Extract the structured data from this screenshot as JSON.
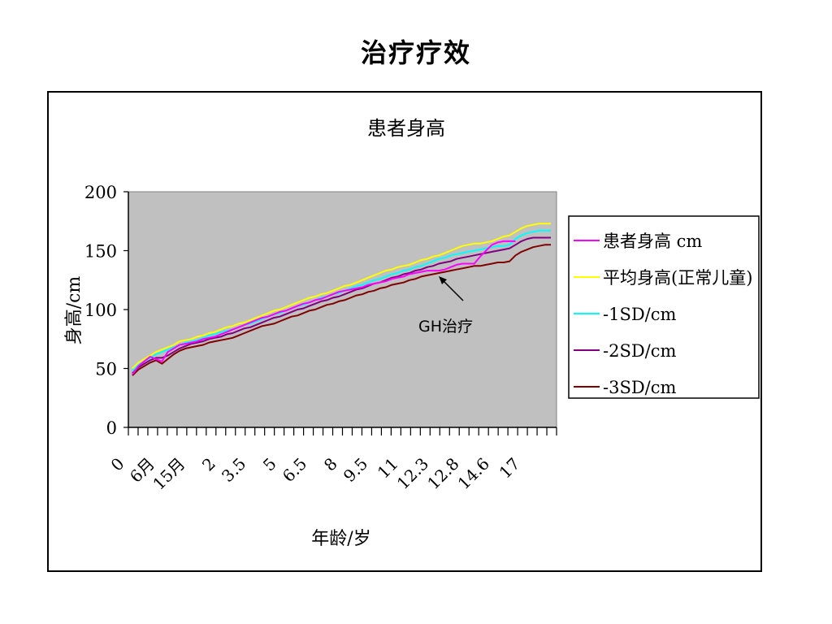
{
  "slide": {
    "title": "治疗疗效"
  },
  "annotation": {
    "text": "GH治疗"
  },
  "chart_data": {
    "type": "line",
    "title": "患者身高",
    "xlabel": "年龄/岁",
    "ylabel": "身高/cm",
    "ylim": [
      0,
      200
    ],
    "yticks": [
      0,
      50,
      100,
      150,
      200
    ],
    "x_tick_labels": [
      "0",
      "6月",
      "15月",
      "2",
      "3.5",
      "5",
      "6.5",
      "8",
      "9.5",
      "11",
      "12.3",
      "12.8",
      "14.6",
      "17"
    ],
    "plot_background": "#c0c0c0",
    "legend_position": "right",
    "series": [
      {
        "name": "患者身高 cm",
        "color": "#ff00ff",
        "values": [
          45,
          52,
          56,
          60,
          58,
          56,
          64,
          67,
          70,
          71,
          72,
          73,
          75,
          76,
          77,
          79,
          81,
          83,
          85,
          87,
          89,
          91,
          93,
          94,
          96,
          98,
          99,
          101,
          103,
          105,
          106,
          108,
          109,
          111,
          113,
          115,
          116,
          117,
          118,
          119,
          121,
          122,
          123,
          124,
          126,
          127,
          128,
          130,
          131,
          132,
          133,
          133,
          133,
          134,
          136,
          138,
          139,
          139,
          139,
          145,
          150,
          155,
          157,
          158,
          158,
          158
        ]
      },
      {
        "name": "平均身高(正常儿童)",
        "color": "#ffff00",
        "values": [
          50,
          55,
          58,
          61,
          64,
          66,
          68,
          70,
          73,
          74,
          75,
          77,
          78,
          80,
          81,
          83,
          85,
          86,
          88,
          89,
          91,
          93,
          95,
          97,
          99,
          100,
          102,
          104,
          106,
          108,
          110,
          111,
          113,
          114,
          116,
          118,
          120,
          121,
          123,
          125,
          127,
          129,
          131,
          133,
          134,
          136,
          137,
          138,
          140,
          142,
          143,
          145,
          146,
          148,
          150,
          152,
          154,
          155,
          156,
          156,
          157,
          158,
          160,
          162,
          163,
          166,
          169,
          171,
          172,
          173,
          173,
          173
        ]
      },
      {
        "name": "-1SD/cm",
        "color": "#00ffff",
        "values": [
          48,
          53,
          56,
          59,
          62,
          64,
          66,
          68,
          70,
          72,
          73,
          74,
          76,
          78,
          79,
          81,
          82,
          83,
          85,
          87,
          88,
          90,
          92,
          94,
          96,
          97,
          99,
          101,
          103,
          104,
          106,
          108,
          110,
          111,
          113,
          114,
          116,
          118,
          120,
          121,
          123,
          125,
          126,
          128,
          130,
          131,
          133,
          134,
          136,
          137,
          139,
          141,
          143,
          144,
          146,
          147,
          148,
          149,
          150,
          151,
          152,
          153,
          154,
          154,
          155,
          160,
          163,
          165,
          166,
          167,
          167,
          167
        ]
      },
      {
        "name": "-2SD/cm",
        "color": "#800080",
        "values": [
          46,
          51,
          54,
          57,
          59,
          59,
          61,
          64,
          67,
          69,
          71,
          72,
          73,
          75,
          76,
          77,
          79,
          80,
          82,
          84,
          85,
          87,
          89,
          91,
          93,
          94,
          96,
          98,
          100,
          101,
          103,
          105,
          107,
          108,
          110,
          111,
          113,
          115,
          117,
          118,
          120,
          122,
          123,
          125,
          127,
          128,
          130,
          131,
          133,
          134,
          136,
          137,
          139,
          140,
          141,
          143,
          144,
          145,
          146,
          147,
          148,
          149,
          150,
          151,
          152,
          155,
          158,
          160,
          161,
          161,
          161,
          161
        ]
      },
      {
        "name": "-3SD/cm",
        "color": "#800000",
        "values": [
          44,
          49,
          52,
          55,
          57,
          54,
          58,
          62,
          65,
          67,
          68,
          69,
          70,
          72,
          73,
          74,
          75,
          76,
          78,
          80,
          82,
          84,
          86,
          87,
          88,
          90,
          92,
          94,
          95,
          97,
          99,
          100,
          102,
          104,
          105,
          107,
          108,
          110,
          112,
          113,
          115,
          116,
          118,
          119,
          121,
          122,
          123,
          125,
          126,
          128,
          129,
          130,
          131,
          132,
          133,
          134,
          135,
          136,
          137,
          137,
          138,
          139,
          140,
          140,
          141,
          146,
          149,
          151,
          153,
          154,
          155,
          155
        ]
      }
    ]
  }
}
